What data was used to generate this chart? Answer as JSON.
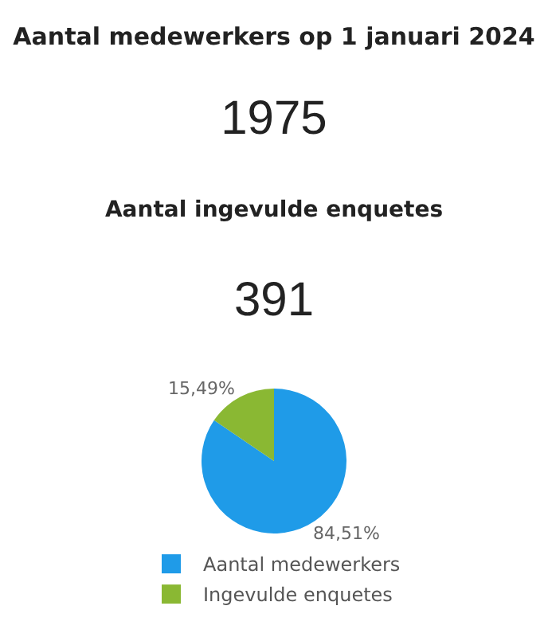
{
  "chart_data": [
    {
      "type": "other",
      "title": "Aantal medewerkers op 1 januari 2024",
      "annotations": [
        "1975"
      ]
    },
    {
      "type": "other",
      "title": "Aantal ingevulde enquetes",
      "annotations": [
        "391"
      ]
    },
    {
      "type": "pie",
      "categories": [
        "Aantal medewerkers",
        "Ingevulde enquetes"
      ],
      "values": [
        84.51,
        15.49
      ],
      "colors": [
        "#1f9be8",
        "#8ab833"
      ],
      "value_labels": [
        "84,51%",
        "15,49%"
      ],
      "legend": "bottom"
    }
  ]
}
